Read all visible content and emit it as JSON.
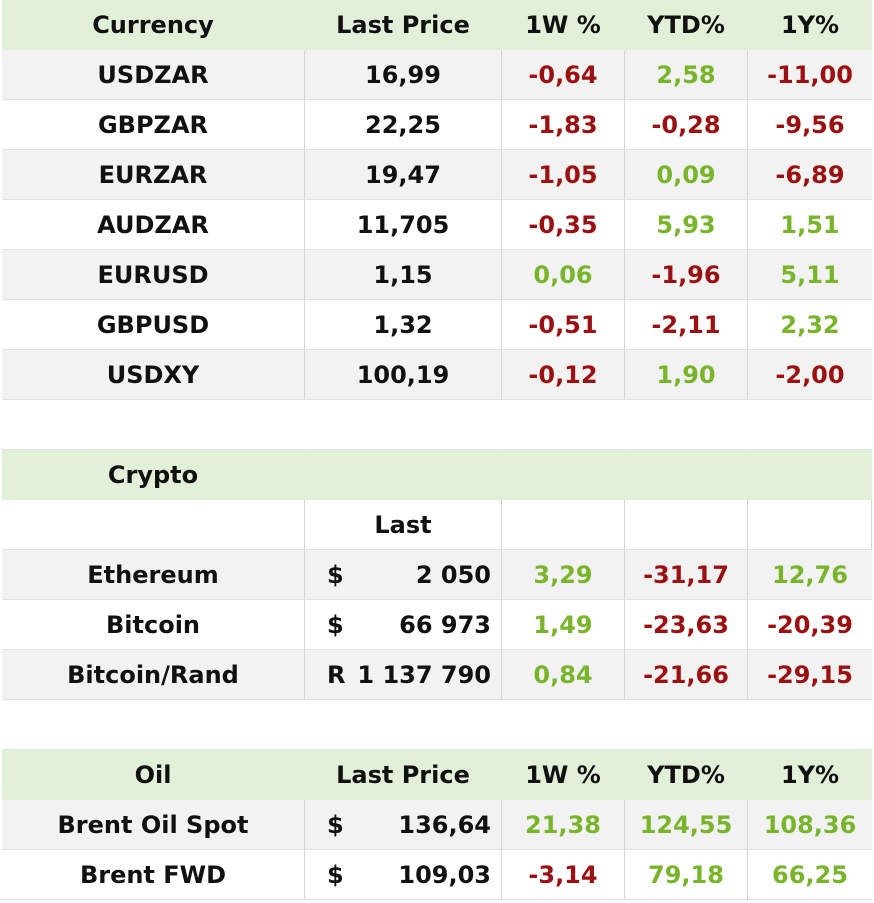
{
  "currency": {
    "headers": [
      "Currency",
      "Last Price",
      "1W %",
      "YTD%",
      "1Y%"
    ],
    "rows": [
      {
        "name": "USDZAR",
        "last": "16,99",
        "w1": "-0,64",
        "ytd": "2,58",
        "y1": "-11,00"
      },
      {
        "name": "GBPZAR",
        "last": "22,25",
        "w1": "-1,83",
        "ytd": "-0,28",
        "y1": "-9,56"
      },
      {
        "name": "EURZAR",
        "last": "19,47",
        "w1": "-1,05",
        "ytd": "0,09",
        "y1": "-6,89"
      },
      {
        "name": "AUDZAR",
        "last": "11,705",
        "w1": "-0,35",
        "ytd": "5,93",
        "y1": "1,51"
      },
      {
        "name": "EURUSD",
        "last": "1,15",
        "w1": "0,06",
        "ytd": "-1,96",
        "y1": "5,11"
      },
      {
        "name": "GBPUSD",
        "last": "1,32",
        "w1": "-0,51",
        "ytd": "-2,11",
        "y1": "2,32"
      },
      {
        "name": "USDXY",
        "last": "100,19",
        "w1": "-0,12",
        "ytd": "1,90",
        "y1": "-2,00"
      }
    ]
  },
  "crypto": {
    "title": "Crypto",
    "subheader": "Last",
    "rows": [
      {
        "name": "Ethereum",
        "symbol": "$",
        "last": "2 050",
        "w1": "3,29",
        "ytd": "-31,17",
        "y1": "12,76"
      },
      {
        "name": "Bitcoin",
        "symbol": "$",
        "last": "66 973",
        "w1": "1,49",
        "ytd": "-23,63",
        "y1": "-20,39"
      },
      {
        "name": "Bitcoin/Rand",
        "symbol": "R",
        "last": "1 137 790",
        "w1": "0,84",
        "ytd": "-21,66",
        "y1": "-29,15"
      }
    ]
  },
  "oil": {
    "headers": [
      "Oil",
      "Last Price",
      "1W %",
      "YTD%",
      "1Y%"
    ],
    "rows": [
      {
        "name": "Brent Oil Spot",
        "symbol": "$",
        "last": "136,64",
        "w1": "21,38",
        "ytd": "124,55",
        "y1": "108,36"
      },
      {
        "name": "Brent FWD",
        "symbol": "$",
        "last": "109,03",
        "w1": "-3,14",
        "ytd": "79,18",
        "y1": "66,25"
      }
    ]
  },
  "colors": {
    "header_bg": "#e2efd9",
    "row_shade": "#f2f2f2",
    "negative": "#9b1111",
    "positive": "#78b52a"
  }
}
